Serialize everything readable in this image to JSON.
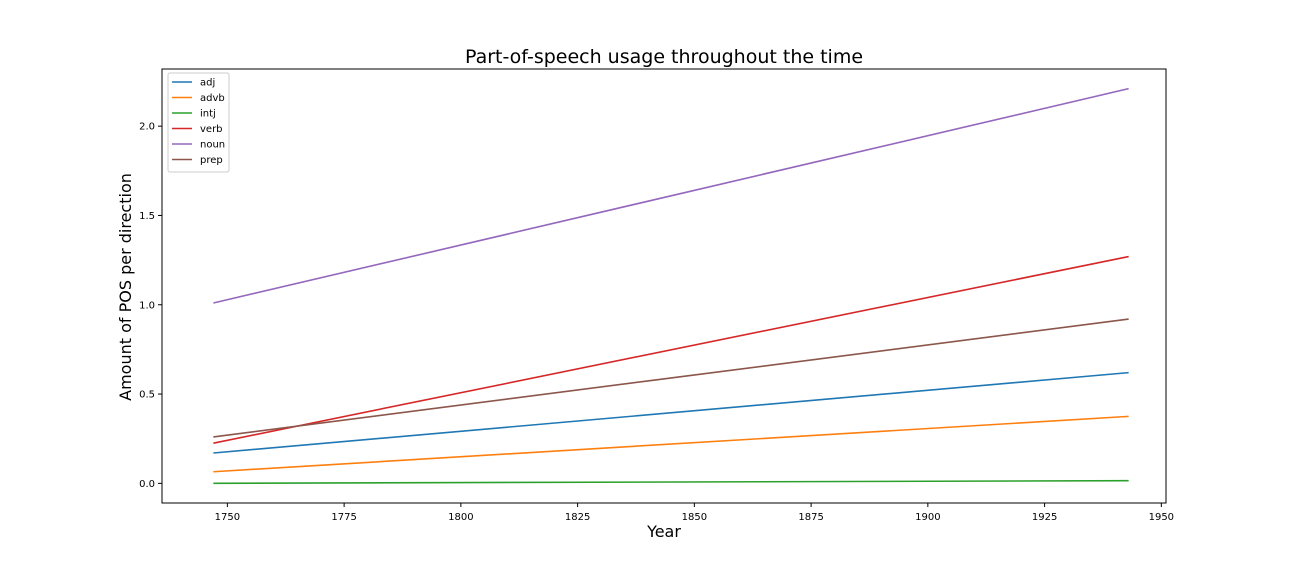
{
  "chart_data": {
    "type": "line",
    "title": "Part-of-speech usage throughout the time",
    "xlabel": "Year",
    "ylabel": "Amount of POS per direction",
    "xlim": [
      1736,
      1951
    ],
    "ylim": [
      -0.11,
      2.32
    ],
    "xticks": [
      1750,
      1775,
      1800,
      1825,
      1850,
      1875,
      1900,
      1925,
      1950
    ],
    "yticks": [
      0.0,
      0.5,
      1.0,
      1.5,
      2.0
    ],
    "xtick_labels": [
      "1750",
      "1775",
      "1800",
      "1825",
      "1850",
      "1875",
      "1900",
      "1925",
      "1950"
    ],
    "ytick_labels": [
      "0.0",
      "0.5",
      "1.0",
      "1.5",
      "2.0"
    ],
    "grid": false,
    "legend_position": "top-left",
    "x": [
      1747,
      1943
    ],
    "series": [
      {
        "name": "adj",
        "color": "#1f77b4",
        "values": [
          0.17,
          0.62
        ]
      },
      {
        "name": "advb",
        "color": "#ff7f0e",
        "values": [
          0.065,
          0.375
        ]
      },
      {
        "name": "intj",
        "color": "#2ca02c",
        "values": [
          0.0,
          0.015
        ]
      },
      {
        "name": "verb",
        "color": "#d62728",
        "values": [
          0.225,
          1.27
        ]
      },
      {
        "name": "noun",
        "color": "#9467bd",
        "values": [
          1.01,
          2.21
        ]
      },
      {
        "name": "prep",
        "color": "#8c564b",
        "values": [
          0.26,
          0.92
        ]
      }
    ]
  }
}
